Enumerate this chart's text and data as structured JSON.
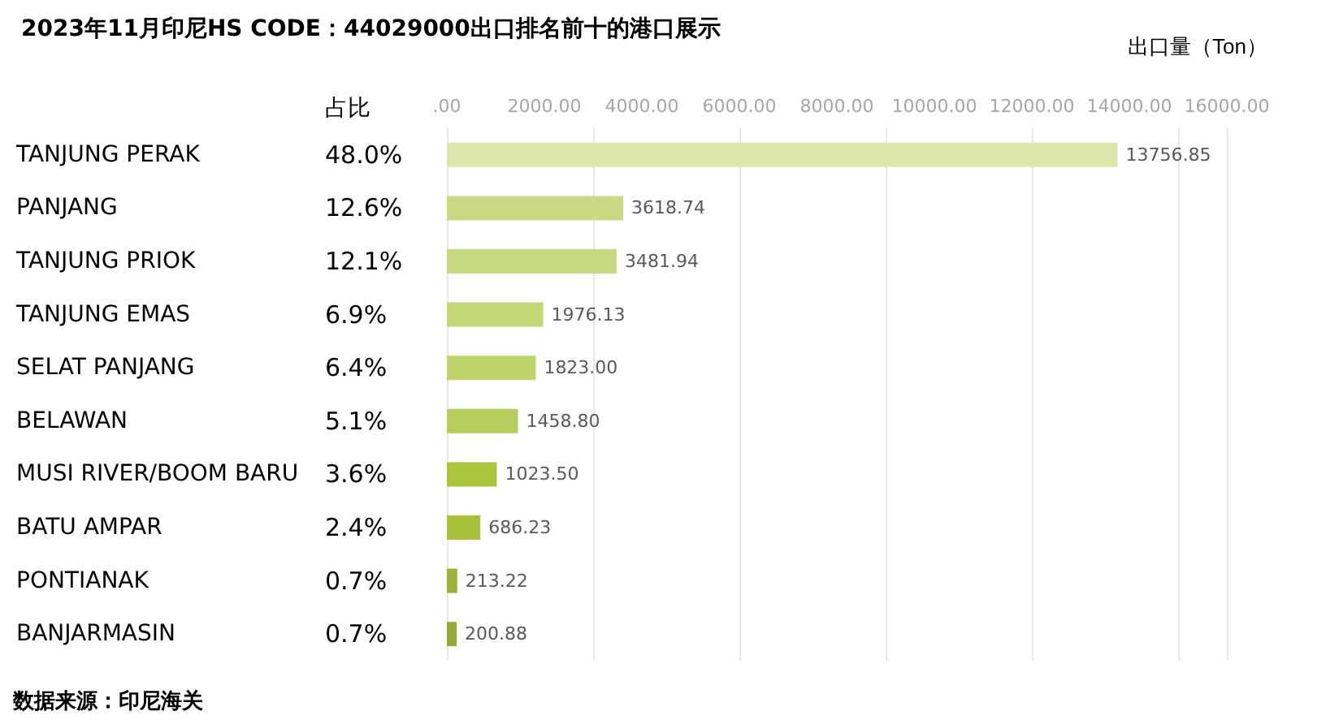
{
  "chart_data": {
    "type": "bar",
    "orientation": "horizontal",
    "title": "2023年11月印尼HS CODE：44029000出口排名前十的港口展示",
    "xlabel": "出口量（Ton）",
    "categories": [
      "TANJUNG PERAK",
      "PANJANG",
      "TANJUNG PRIOK",
      "TANJUNG EMAS",
      "SELAT PANJANG",
      "BELAWAN",
      "MUSI RIVER/BOOM BARU",
      "BATU AMPAR",
      "PONTIANAK",
      "BANJARMASIN"
    ],
    "values": [
      13756.85,
      3618.74,
      3481.94,
      1976.13,
      1823.0,
      1458.8,
      1023.5,
      686.23,
      213.22,
      200.88
    ],
    "value_labels": [
      "13756.85",
      "3618.74",
      "3481.94",
      "1976.13",
      "1823.00",
      "1458.80",
      "1023.50",
      "686.23",
      "213.22",
      "200.88"
    ],
    "colors": [
      "#dce6ab",
      "#cbd984",
      "#c8d880",
      "#c4d676",
      "#bfd36c",
      "#b6cc5c",
      "#abc43e",
      "#a8c03a",
      "#9cb33a",
      "#93ab35"
    ],
    "xlim": [
      0,
      16000
    ],
    "xticks": [
      {
        "value": 0,
        "label": ".00"
      },
      {
        "value": 2000,
        "label": "2000.00"
      },
      {
        "value": 4000,
        "label": "4000.00"
      },
      {
        "value": 6000,
        "label": "6000.00"
      },
      {
        "value": 8000,
        "label": "8000.00"
      },
      {
        "value": 10000,
        "label": "10000.00"
      },
      {
        "value": 12000,
        "label": "12000.00"
      },
      {
        "value": 14000,
        "label": "14000.00"
      },
      {
        "value": 16000,
        "label": "16000.00"
      }
    ],
    "grid": "x",
    "annotations": [
      "占比",
      "48.0%",
      "12.6%",
      "12.1%",
      "6.9%",
      "6.4%",
      "5.1%",
      "3.6%",
      "2.4%",
      "0.7%",
      "0.7%",
      "数据来源：印尼海关"
    ]
  }
}
